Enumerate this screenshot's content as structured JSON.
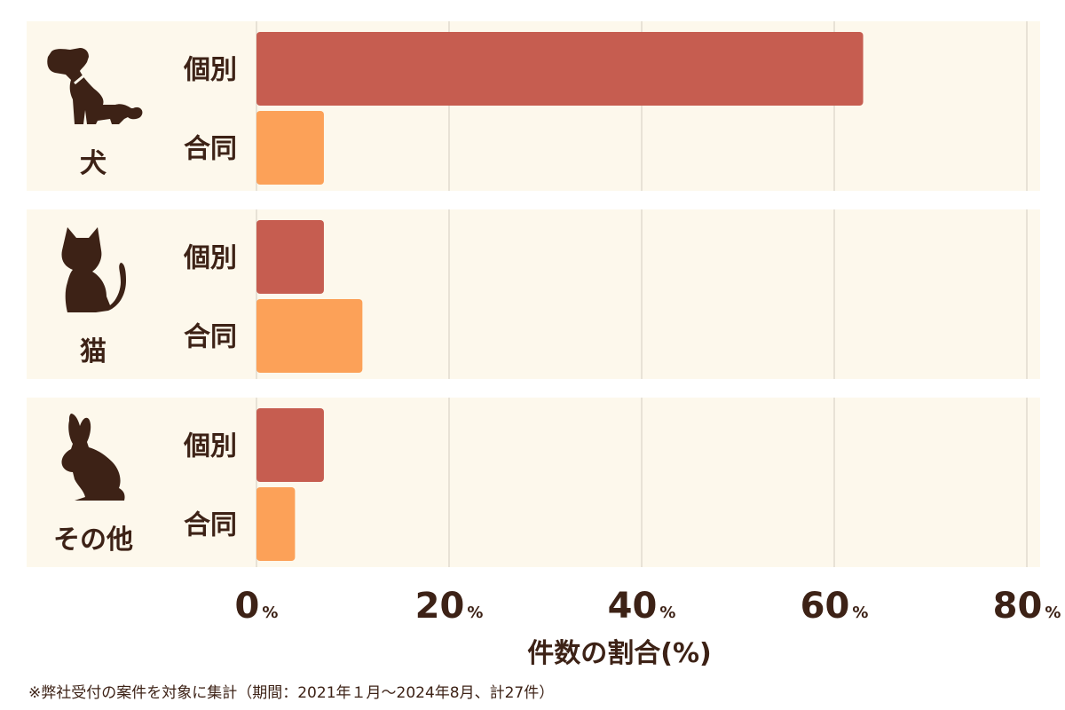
{
  "chart_data": {
    "type": "bar",
    "orientation": "horizontal",
    "groups": [
      {
        "label": "犬",
        "icon": "dog-icon",
        "bars": [
          {
            "label": "個別",
            "value": 63
          },
          {
            "label": "合同",
            "value": 7
          }
        ]
      },
      {
        "label": "猫",
        "icon": "cat-icon",
        "bars": [
          {
            "label": "個別",
            "value": 7
          },
          {
            "label": "合同",
            "value": 11
          }
        ]
      },
      {
        "label": "その他",
        "icon": "rabbit-icon",
        "bars": [
          {
            "label": "個別",
            "value": 7
          },
          {
            "label": "合同",
            "value": 4
          }
        ]
      }
    ],
    "x_ticks": [
      {
        "num": "0",
        "unit": "%"
      },
      {
        "num": "20",
        "unit": "%"
      },
      {
        "num": "40",
        "unit": "%"
      },
      {
        "num": "60",
        "unit": "%"
      },
      {
        "num": "80",
        "unit": "%"
      }
    ],
    "xlim": [
      0,
      80
    ],
    "xlabel": "件数の割合(%)",
    "grid": true,
    "colors": {
      "個別": "#c65d50",
      "合同": "#fca158",
      "panel": "#fdf8ec",
      "text": "#3d2216",
      "grid": "#d2cbc0"
    }
  },
  "footnote": "※弊社受付の案件を対象に集計（期間：2021年１月～2024年8月、計27件）"
}
